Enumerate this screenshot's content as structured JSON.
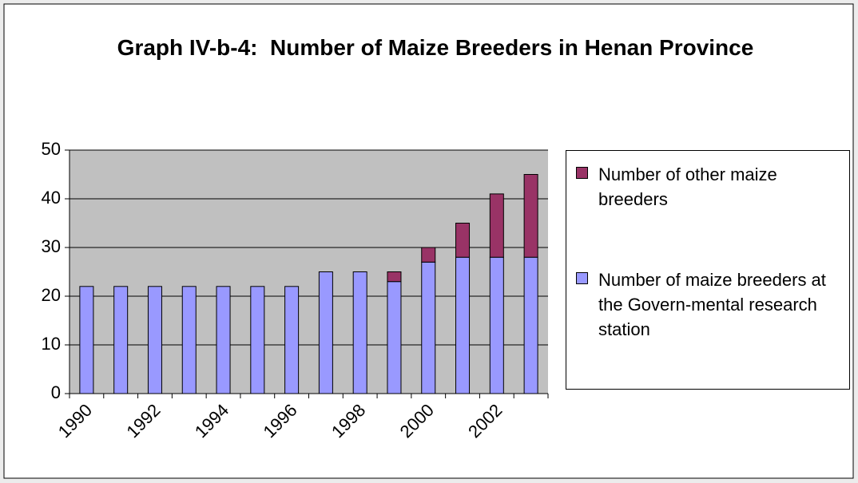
{
  "chart_data": {
    "type": "stacked_bar",
    "title": "Graph IV-b-4:  Number of Maize Breeders in Henan Province",
    "categories": [
      "1990",
      null,
      "1992",
      null,
      "1994",
      null,
      "1996",
      null,
      "1998",
      null,
      "2000",
      null,
      "2002",
      null
    ],
    "series": [
      {
        "name": "Number of maize breeders at the Govern-mental research station",
        "color": "#9999ff",
        "values": [
          22,
          22,
          22,
          22,
          22,
          22,
          22,
          25,
          25,
          23,
          27,
          28,
          28,
          28
        ]
      },
      {
        "name": "Number of other maize breeders",
        "color": "#993366",
        "values": [
          0,
          0,
          0,
          0,
          0,
          0,
          0,
          0,
          0,
          2,
          3,
          7,
          13,
          17
        ]
      }
    ],
    "ylim": [
      0,
      50
    ],
    "yticks": [
      0,
      10,
      20,
      30,
      40,
      50
    ],
    "grid": true,
    "plot_background": "#c0c0c0",
    "legend": "right"
  }
}
